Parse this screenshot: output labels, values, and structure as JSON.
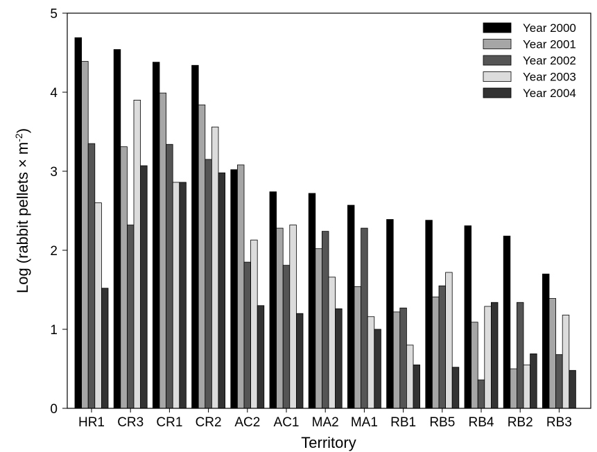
{
  "chart_data": {
    "type": "bar",
    "xlabel": "Territory",
    "ylabel_main": "Log (rabbit pellets × m",
    "ylabel_sup": "-2",
    "ylabel_close": ")",
    "ylim": [
      0,
      5
    ],
    "yticks": [
      "0",
      "1",
      "2",
      "3",
      "4",
      "5"
    ],
    "grid": false,
    "legend_position": "top-right",
    "categories": [
      "HR1",
      "CR3",
      "CR1",
      "CR2",
      "AC2",
      "AC1",
      "MA2",
      "MA1",
      "RB1",
      "RB5",
      "RB4",
      "RB2",
      "RB3"
    ],
    "series": [
      {
        "name": "Year 2000",
        "color": "#000000",
        "values": [
          4.69,
          4.54,
          4.38,
          4.34,
          3.02,
          2.74,
          2.72,
          2.57,
          2.39,
          2.38,
          2.31,
          2.18,
          1.7
        ]
      },
      {
        "name": "Year 2001",
        "color": "#a6a6a6",
        "values": [
          4.39,
          3.31,
          3.99,
          3.84,
          3.08,
          2.28,
          2.02,
          1.54,
          1.22,
          1.41,
          1.09,
          0.5,
          1.39
        ]
      },
      {
        "name": "Year 2002",
        "color": "#555555",
        "values": [
          3.35,
          2.32,
          3.34,
          3.15,
          1.85,
          1.81,
          2.24,
          2.28,
          1.27,
          1.55,
          0.36,
          1.34,
          0.68
        ]
      },
      {
        "name": "Year 2003",
        "color": "#dcdcdc",
        "values": [
          2.6,
          3.9,
          2.86,
          3.56,
          2.13,
          2.32,
          1.66,
          1.16,
          0.8,
          1.72,
          1.29,
          0.55,
          1.18
        ]
      },
      {
        "name": "Year 2004",
        "color": "#333333",
        "values": [
          1.52,
          3.07,
          2.86,
          2.98,
          1.3,
          1.2,
          1.26,
          1.0,
          0.55,
          0.52,
          1.34,
          0.69,
          0.48
        ]
      }
    ]
  }
}
